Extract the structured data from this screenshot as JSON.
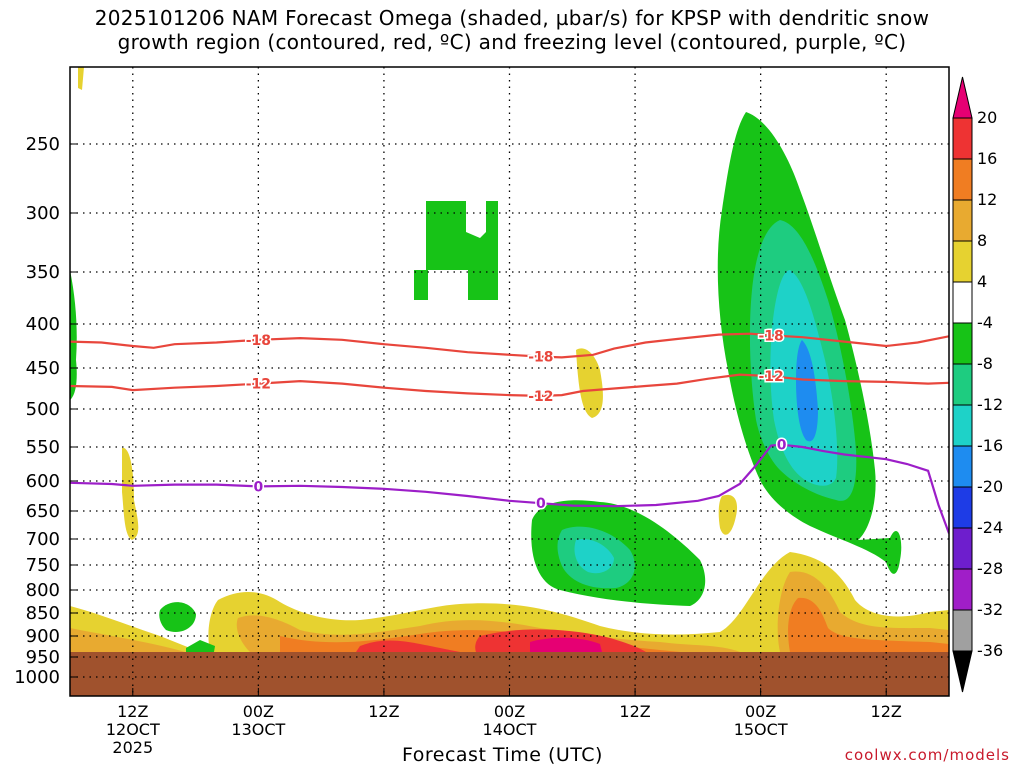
{
  "title": {
    "line1": "2025101206 NAM Forecast Omega (shaded, µbar/s) for KPSP with dendritic snow",
    "line2": "growth region (contoured, red, ºC) and freezing level (contoured, purple, ºC)"
  },
  "chart_data": {
    "type": "heatmap",
    "xlabel": "Forecast Time (UTC)",
    "ylabel": "",
    "y_ticks": [
      250,
      300,
      350,
      400,
      450,
      500,
      550,
      600,
      650,
      700,
      750,
      800,
      850,
      900,
      950,
      1000
    ],
    "ylim": [
      1000,
      200
    ],
    "x_range_hours": [
      0,
      84
    ],
    "x_ticks": [
      {
        "hour": 6,
        "label": "12Z",
        "sub": "12OCT",
        "sub2": "2025"
      },
      {
        "hour": 18,
        "label": "00Z",
        "sub": "13OCT",
        "sub2": ""
      },
      {
        "hour": 30,
        "label": "12Z",
        "sub": "",
        "sub2": ""
      },
      {
        "hour": 42,
        "label": "00Z",
        "sub": "14OCT",
        "sub2": ""
      },
      {
        "hour": 54,
        "label": "12Z",
        "sub": "",
        "sub2": ""
      },
      {
        "hour": 66,
        "label": "00Z",
        "sub": "15OCT",
        "sub2": ""
      },
      {
        "hour": 78,
        "label": "12Z",
        "sub": "",
        "sub2": ""
      }
    ],
    "colorbar": {
      "labels": [
        "20",
        "16",
        "12",
        "8",
        "4",
        "-4",
        "-8",
        "-12",
        "-16",
        "-20",
        "-24",
        "-28",
        "-32",
        "-36"
      ],
      "colors": [
        "#e60073",
        "#ee3333",
        "#f07d22",
        "#e8aa30",
        "#e6d230",
        "#ffffff",
        "#17c317",
        "#1ecc80",
        "#1ed2c8",
        "#1e8cf0",
        "#1e3ce6",
        "#6e1ecd",
        "#a01ec8",
        "#a0a0a0",
        "#000000"
      ]
    },
    "series": [
      {
        "name": "-18",
        "color": "#e8463c",
        "points": [
          [
            0,
            420
          ],
          [
            3,
            421
          ],
          [
            6,
            425
          ],
          [
            8,
            427
          ],
          [
            10,
            423
          ],
          [
            14,
            421
          ],
          [
            18,
            418
          ],
          [
            22,
            416
          ],
          [
            26,
            418
          ],
          [
            30,
            423
          ],
          [
            34,
            427
          ],
          [
            38,
            432
          ],
          [
            42,
            435
          ],
          [
            45,
            437
          ],
          [
            47,
            438
          ],
          [
            50,
            435
          ],
          [
            52,
            428
          ],
          [
            55,
            421
          ],
          [
            58,
            417
          ],
          [
            62,
            412
          ],
          [
            65,
            411
          ],
          [
            67,
            413
          ],
          [
            70,
            415
          ],
          [
            74,
            420
          ],
          [
            78,
            425
          ],
          [
            81,
            421
          ],
          [
            84,
            414
          ]
        ]
      },
      {
        "name": "-12",
        "color": "#e8463c",
        "points": [
          [
            0,
            472
          ],
          [
            4,
            473
          ],
          [
            6,
            477
          ],
          [
            10,
            474
          ],
          [
            14,
            472
          ],
          [
            18,
            469
          ],
          [
            22,
            466
          ],
          [
            26,
            469
          ],
          [
            30,
            474
          ],
          [
            34,
            478
          ],
          [
            38,
            481
          ],
          [
            42,
            483
          ],
          [
            45,
            484
          ],
          [
            47,
            483
          ],
          [
            49,
            478
          ],
          [
            52,
            475
          ],
          [
            55,
            472
          ],
          [
            58,
            469
          ],
          [
            61,
            463
          ],
          [
            64,
            458
          ],
          [
            67,
            460
          ],
          [
            70,
            464
          ],
          [
            74,
            466
          ],
          [
            78,
            467
          ],
          [
            82,
            469
          ],
          [
            84,
            468
          ]
        ]
      },
      {
        "name": "0",
        "color": "#9c1ec8",
        "points": [
          [
            0,
            603
          ],
          [
            4,
            605
          ],
          [
            6,
            608
          ],
          [
            10,
            606
          ],
          [
            14,
            606
          ],
          [
            18,
            609
          ],
          [
            22,
            608
          ],
          [
            26,
            610
          ],
          [
            30,
            613
          ],
          [
            34,
            618
          ],
          [
            38,
            625
          ],
          [
            42,
            633
          ],
          [
            45,
            637
          ],
          [
            48,
            641
          ],
          [
            52,
            642
          ],
          [
            56,
            640
          ],
          [
            60,
            633
          ],
          [
            62,
            625
          ],
          [
            64,
            605
          ],
          [
            65.5,
            578
          ],
          [
            67,
            548
          ],
          [
            68,
            547
          ],
          [
            70,
            550
          ],
          [
            72,
            556
          ],
          [
            74,
            561
          ],
          [
            78,
            568
          ],
          [
            80,
            575
          ],
          [
            82,
            585
          ],
          [
            83,
            640
          ],
          [
            84,
            690
          ]
        ]
      }
    ],
    "shaded_regions": [
      {
        "value": "-8",
        "desc": "mid/upper-level ascent near 14OCT 00Z and 15OCT 00Z"
      },
      {
        "value": "-16",
        "desc": "strongest ascent core near 15OCT 00Z-06Z, 400-650 mb"
      },
      {
        "value": "12",
        "desc": "low-level subsidence band 850-950 mb"
      }
    ]
  },
  "xlabel": "Forecast Time (UTC)",
  "credit": "coolwx.com/models"
}
